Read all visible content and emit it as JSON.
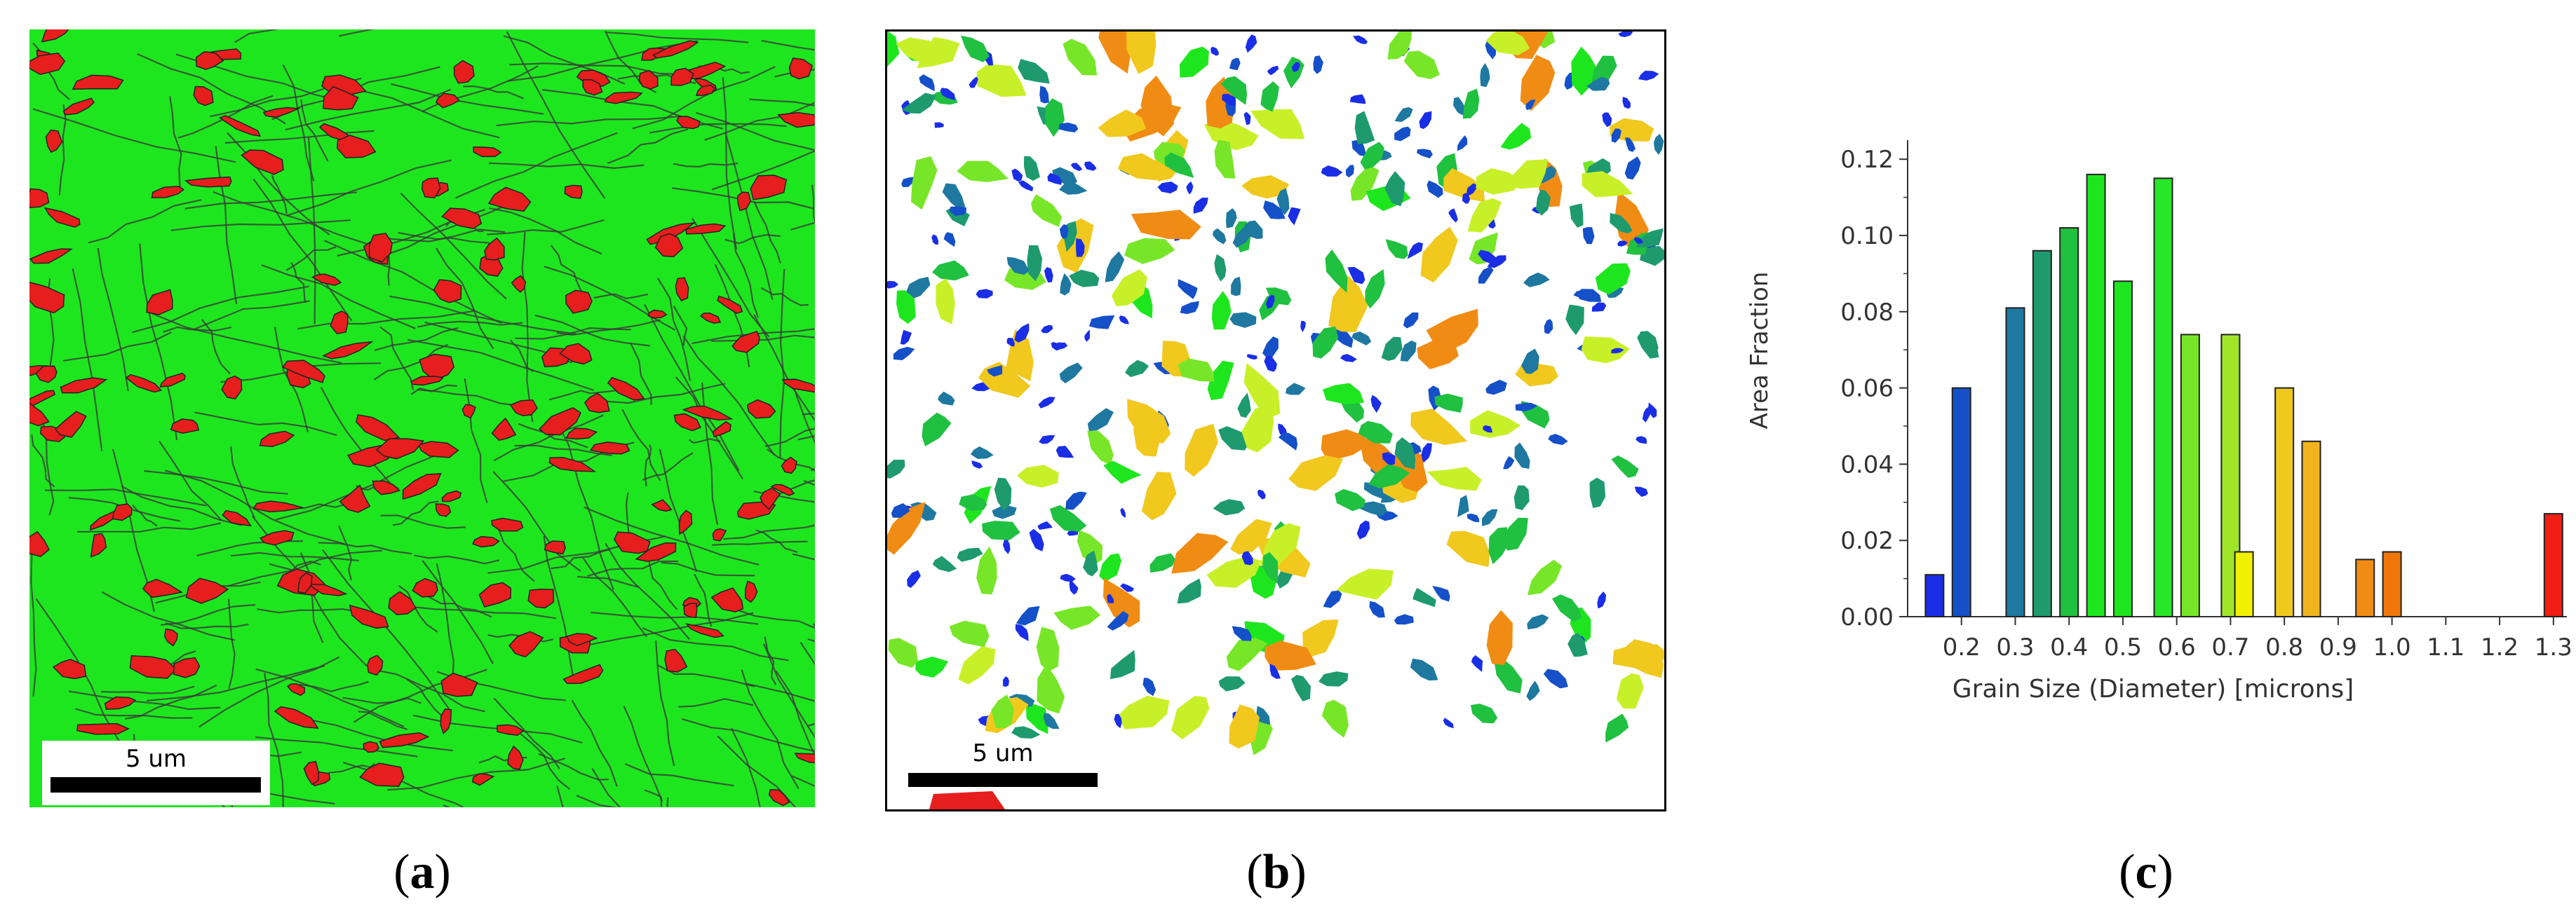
{
  "figure": {
    "panels": [
      {
        "id": "a",
        "label_letter": "a",
        "scalebar_label": "5 um"
      },
      {
        "id": "b",
        "label_letter": "b",
        "scalebar_label": "5 um"
      },
      {
        "id": "c",
        "label_letter": "c"
      }
    ]
  },
  "colors": {
    "phase_green": "#1ee61e",
    "phase_red": "#e61e1e",
    "boundary": "#3a3a3a"
  },
  "chart_data": {
    "type": "bar",
    "title": "",
    "xlabel": "Grain Size (Diameter) [microns]",
    "ylabel": "Area Fraction",
    "x_tick_labels": [
      "0.2",
      "0.3",
      "0.4",
      "0.5",
      "0.6",
      "0.7",
      "0.8",
      "0.9",
      "1.0",
      "1.1",
      "1.2",
      "1.3"
    ],
    "y_tick_labels": [
      "0.00",
      "0.02",
      "0.04",
      "0.06",
      "0.08",
      "0.10",
      "0.12"
    ],
    "ylim": [
      0,
      0.125
    ],
    "xlim": [
      0.15,
      1.3
    ],
    "grid": false,
    "bars": [
      {
        "x": 0.15,
        "value": 0.011,
        "color": "#1a2ee6"
      },
      {
        "x": 0.2,
        "value": 0.06,
        "color": "#1550c8"
      },
      {
        "x": 0.3,
        "value": 0.081,
        "color": "#1e78a0"
      },
      {
        "x": 0.35,
        "value": 0.096,
        "color": "#1e9a6e"
      },
      {
        "x": 0.4,
        "value": 0.102,
        "color": "#20c040"
      },
      {
        "x": 0.45,
        "value": 0.116,
        "color": "#1ee61e"
      },
      {
        "x": 0.5,
        "value": 0.088,
        "color": "#1ee61e"
      },
      {
        "x": 0.575,
        "value": 0.115,
        "color": "#28e628"
      },
      {
        "x": 0.625,
        "value": 0.074,
        "color": "#78e628"
      },
      {
        "x": 0.7,
        "value": 0.074,
        "color": "#a0e628"
      },
      {
        "x": 0.725,
        "value": 0.017,
        "color": "#f0f000"
      },
      {
        "x": 0.8,
        "value": 0.06,
        "color": "#f0c81e"
      },
      {
        "x": 0.85,
        "value": 0.046,
        "color": "#f0b41e"
      },
      {
        "x": 0.95,
        "value": 0.015,
        "color": "#f08c14"
      },
      {
        "x": 1.0,
        "value": 0.017,
        "color": "#f0780a"
      },
      {
        "x": 1.3,
        "value": 0.027,
        "color": "#f01e14"
      }
    ]
  }
}
